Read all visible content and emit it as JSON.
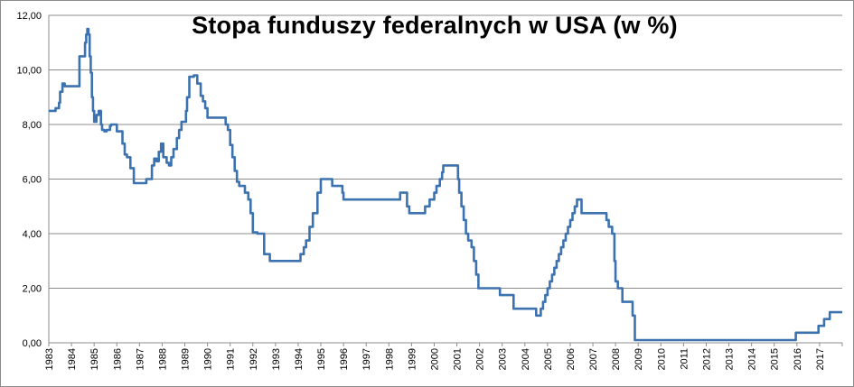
{
  "chart_data": {
    "type": "line",
    "title": "Stopa funduszy federalnych w USA (w %)",
    "xlabel": "",
    "ylabel": "",
    "xlim": [
      1983,
      2018
    ],
    "ylim": [
      0,
      12
    ],
    "y_ticks": [
      "0,00",
      "2,00",
      "4,00",
      "6,00",
      "8,00",
      "10,00",
      "12,00"
    ],
    "x_ticks": [
      "1983",
      "1984",
      "1985",
      "1986",
      "1987",
      "1988",
      "1989",
      "1990",
      "1991",
      "1992",
      "1993",
      "1994",
      "1995",
      "1996",
      "1997",
      "1998",
      "1999",
      "2000",
      "2001",
      "2002",
      "2003",
      "2004",
      "2005",
      "2006",
      "2007",
      "2008",
      "2009",
      "2010",
      "2011",
      "2012",
      "2013",
      "2014",
      "2015",
      "2016",
      "2017"
    ],
    "grid": "horizontal",
    "legend": "none",
    "colors": {
      "line": "#3d72b0",
      "grid": "#8c8c8c",
      "axis": "#8c8c8c"
    },
    "series": [
      {
        "x": [
          1983.0,
          1983.3,
          1983.45,
          1983.5,
          1983.6,
          1983.7,
          1983.8,
          1984.3,
          1984.35,
          1984.55,
          1984.6,
          1984.65,
          1984.7,
          1984.75,
          1984.8,
          1984.85,
          1984.9,
          1984.95,
          1985.0,
          1985.1,
          1985.2,
          1985.3,
          1985.35,
          1985.45,
          1985.55,
          1985.7,
          1985.75,
          1986.0,
          1986.15,
          1986.25,
          1986.35,
          1986.45,
          1986.6,
          1986.75,
          1987.0,
          1987.3,
          1987.4,
          1987.55,
          1987.65,
          1987.75,
          1987.85,
          1987.95,
          1988.05,
          1988.2,
          1988.3,
          1988.4,
          1988.5,
          1988.65,
          1988.75,
          1988.85,
          1988.95,
          1989.05,
          1989.1,
          1989.2,
          1989.4,
          1989.55,
          1989.7,
          1989.8,
          1989.9,
          1990.0,
          1990.5,
          1990.8,
          1990.9,
          1991.0,
          1991.1,
          1991.2,
          1991.3,
          1991.4,
          1991.5,
          1991.65,
          1991.8,
          1991.9,
          1992.0,
          1992.2,
          1992.5,
          1992.75,
          1993.0,
          1993.5,
          1994.0,
          1994.1,
          1994.25,
          1994.35,
          1994.5,
          1994.65,
          1994.85,
          1995.0,
          1995.5,
          1995.95,
          1996.0,
          1997.2,
          1998.5,
          1998.8,
          1998.9,
          1999.5,
          1999.6,
          1999.8,
          2000.0,
          2000.1,
          2000.25,
          2000.35,
          2000.4,
          2001.0,
          2001.05,
          2001.1,
          2001.2,
          2001.3,
          2001.4,
          2001.5,
          2001.65,
          2001.75,
          2001.85,
          2001.95,
          2002.9,
          2003.5,
          2004.5,
          2004.6,
          2004.7,
          2004.8,
          2004.9,
          2005.0,
          2005.1,
          2005.2,
          2005.3,
          2005.4,
          2005.5,
          2005.6,
          2005.7,
          2005.8,
          2005.9,
          2006.0,
          2006.1,
          2006.2,
          2006.3,
          2006.4,
          2006.5,
          2007.6,
          2007.7,
          2007.85,
          2007.95,
          2008.0,
          2008.1,
          2008.2,
          2008.3,
          2008.75,
          2008.85,
          2008.95,
          2015.95,
          2016.95,
          2017.2,
          2017.45,
          2017.95
        ],
        "y": [
          8.5,
          8.6,
          8.8,
          9.2,
          9.5,
          9.4,
          9.4,
          9.4,
          10.5,
          10.5,
          11.0,
          11.3,
          11.5,
          11.3,
          10.5,
          9.9,
          9.0,
          8.5,
          8.1,
          8.35,
          8.5,
          8.0,
          7.8,
          7.75,
          7.8,
          7.95,
          8.0,
          7.75,
          7.75,
          7.3,
          6.9,
          6.8,
          6.4,
          5.85,
          5.85,
          6.0,
          6.0,
          6.5,
          6.75,
          6.65,
          7.0,
          7.3,
          6.8,
          6.6,
          6.5,
          6.8,
          7.1,
          7.5,
          7.8,
          8.1,
          8.1,
          8.5,
          9.0,
          9.75,
          9.8,
          9.5,
          9.05,
          8.85,
          8.6,
          8.25,
          8.25,
          8.0,
          7.8,
          7.25,
          6.8,
          6.3,
          5.9,
          5.75,
          5.75,
          5.5,
          5.25,
          4.75,
          4.05,
          4.0,
          3.25,
          3.0,
          3.0,
          3.0,
          3.0,
          3.25,
          3.5,
          3.75,
          4.25,
          4.75,
          5.5,
          6.0,
          5.75,
          5.5,
          5.25,
          5.25,
          5.5,
          5.0,
          4.75,
          4.75,
          5.0,
          5.25,
          5.5,
          5.75,
          6.0,
          6.25,
          6.5,
          6.5,
          6.0,
          5.5,
          5.0,
          4.5,
          4.0,
          3.75,
          3.5,
          3.0,
          2.5,
          2.0,
          1.75,
          1.25,
          1.0,
          1.0,
          1.25,
          1.5,
          1.75,
          2.0,
          2.25,
          2.5,
          2.75,
          3.0,
          3.25,
          3.5,
          3.75,
          4.0,
          4.25,
          4.5,
          4.75,
          5.0,
          5.25,
          5.25,
          4.75,
          4.5,
          4.25,
          4.0,
          3.0,
          2.25,
          2.0,
          2.0,
          1.5,
          1.0,
          0.1,
          0.1,
          0.37,
          0.62,
          0.87,
          1.12,
          1.12
        ]
      }
    ]
  }
}
